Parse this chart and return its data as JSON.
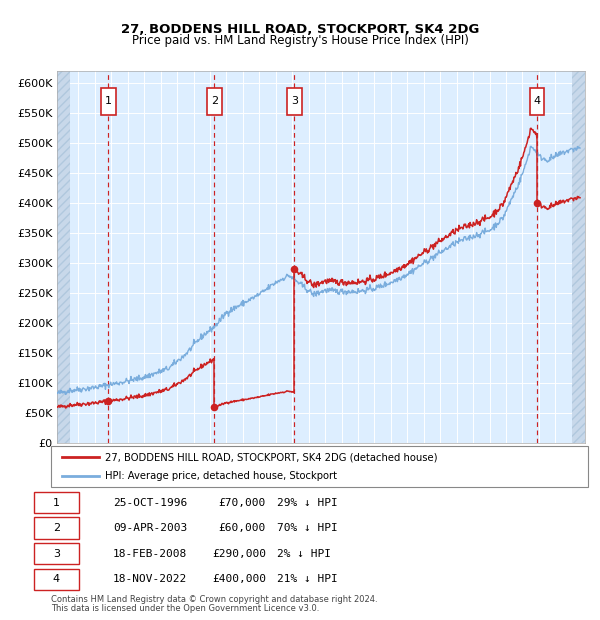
{
  "title1": "27, BODDENS HILL ROAD, STOCKPORT, SK4 2DG",
  "title2": "Price paid vs. HM Land Registry's House Price Index (HPI)",
  "ylim": [
    0,
    620000
  ],
  "yticks": [
    0,
    50000,
    100000,
    150000,
    200000,
    250000,
    300000,
    350000,
    400000,
    450000,
    500000,
    550000,
    600000
  ],
  "xlim_start": 1993.7,
  "xlim_end": 2025.8,
  "plot_bg_color": "#ddeeff",
  "grid_color": "#ffffff",
  "hpi_color": "#7aaddd",
  "price_color": "#cc2222",
  "transactions": [
    {
      "num": 1,
      "date_str": "25-OCT-1996",
      "x": 1996.81,
      "price": 70000
    },
    {
      "num": 2,
      "date_str": "09-APR-2003",
      "x": 2003.27,
      "price": 60000
    },
    {
      "num": 3,
      "date_str": "18-FEB-2008",
      "x": 2008.13,
      "price": 290000
    },
    {
      "num": 4,
      "date_str": "18-NOV-2022",
      "x": 2022.88,
      "price": 400000
    }
  ],
  "legend_label1": "27, BODDENS HILL ROAD, STOCKPORT, SK4 2DG (detached house)",
  "legend_label2": "HPI: Average price, detached house, Stockport",
  "footer1": "Contains HM Land Registry data © Crown copyright and database right 2024.",
  "footer2": "This data is licensed under the Open Government Licence v3.0.",
  "table_rows": [
    {
      "num": 1,
      "date": "25-OCT-1996",
      "price": "£70,000",
      "pct": "29% ↓ HPI"
    },
    {
      "num": 2,
      "date": "09-APR-2003",
      "price": "£60,000",
      "pct": "70% ↓ HPI"
    },
    {
      "num": 3,
      "date": "18-FEB-2008",
      "price": "£290,000",
      "pct": "2% ↓ HPI"
    },
    {
      "num": 4,
      "date": "18-NOV-2022",
      "price": "£400,000",
      "pct": "21% ↓ HPI"
    }
  ]
}
